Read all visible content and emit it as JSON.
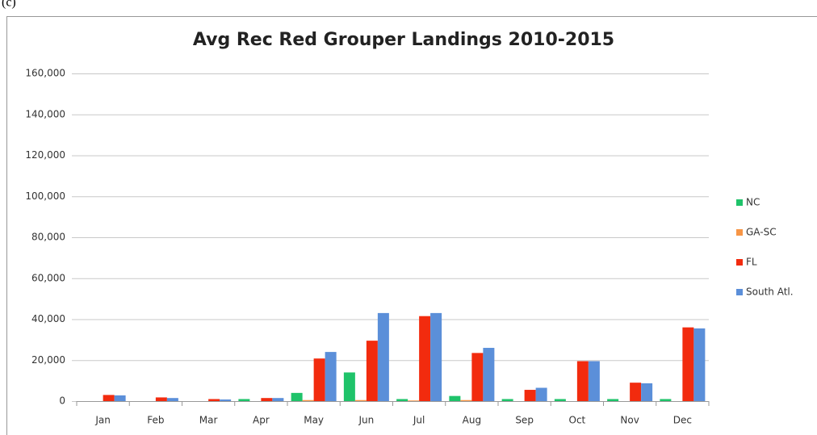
{
  "caption": "(c)",
  "chart_data": {
    "type": "bar",
    "title": "Avg Rec Red Grouper Landings 2010-2015",
    "categories": [
      "Jan",
      "Feb",
      "Mar",
      "Apr",
      "May",
      "Jun",
      "Jul",
      "Aug",
      "Sep",
      "Oct",
      "Nov",
      "Dec"
    ],
    "series": [
      {
        "name": "NC",
        "color": "#1fc36a",
        "values": [
          0,
          0,
          0,
          1000,
          4000,
          14000,
          1000,
          2500,
          1000,
          1000,
          1000,
          1000
        ]
      },
      {
        "name": "GA-SC",
        "color": "#f79646",
        "values": [
          0,
          0,
          0,
          0,
          500,
          500,
          300,
          500,
          0,
          0,
          0,
          0
        ]
      },
      {
        "name": "FL",
        "color": "#f22b0e",
        "values": [
          3000,
          1800,
          1000,
          1500,
          20800,
          29500,
          41500,
          23500,
          5500,
          19500,
          9000,
          36000
        ]
      },
      {
        "name": "South Atl.",
        "color": "#5b8fd9",
        "values": [
          2800,
          1500,
          800,
          1500,
          24000,
          43000,
          43000,
          26000,
          6500,
          19500,
          8700,
          35500
        ]
      }
    ],
    "ylim": [
      0,
      160000
    ],
    "yticks": [
      0,
      {
        "value": 20000,
        "label": "20,000"
      },
      {
        "value": 40000,
        "label": "40,000"
      },
      {
        "value": 60000,
        "label": "60,000"
      },
      {
        "value": 80000,
        "label": "80,000"
      },
      {
        "value": 100000,
        "label": "100,000"
      },
      {
        "value": 120000,
        "label": "120,000"
      },
      {
        "value": 140000,
        "label": "140,000"
      },
      {
        "value": 160000,
        "label": "160,000"
      }
    ],
    "grid": true,
    "legend": "right"
  }
}
